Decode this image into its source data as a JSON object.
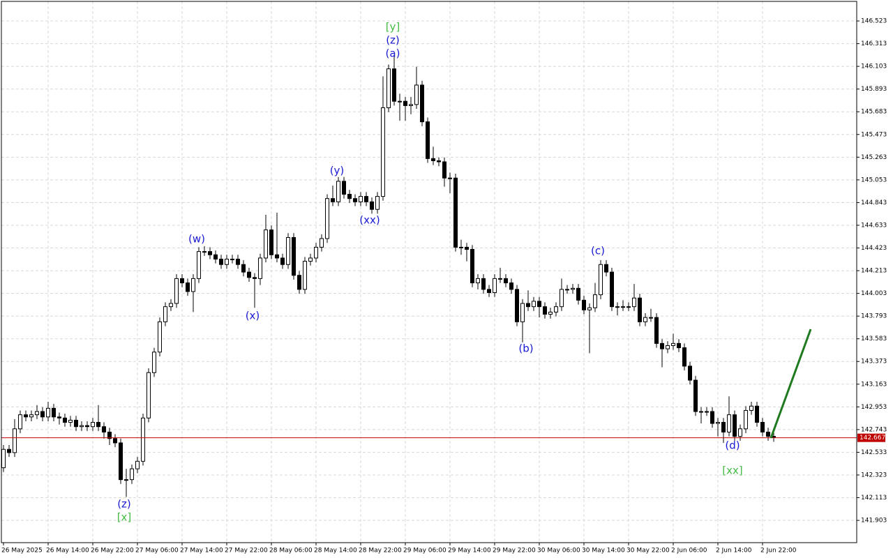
{
  "chart_data": {
    "type": "candlestick",
    "categories": [
      "26 May 2025",
      null,
      null,
      null,
      null,
      null,
      null,
      null,
      "26 May 14:00",
      null,
      null,
      null,
      null,
      null,
      null,
      null,
      "26 May 22:00",
      null,
      null,
      null,
      null,
      null,
      null,
      null,
      "27 May 06:00",
      null,
      null,
      null,
      null,
      null,
      null,
      null,
      "27 May 14:00",
      null,
      null,
      null,
      null,
      null,
      null,
      null,
      "27 May 22:00",
      null,
      null,
      null,
      null,
      null,
      null,
      null,
      "28 May 06:00",
      null,
      null,
      null,
      null,
      null,
      null,
      null,
      "28 May 14:00",
      null,
      null,
      null,
      null,
      null,
      null,
      null,
      "28 May 22:00",
      null,
      null,
      null,
      null,
      null,
      null,
      null,
      "29 May 06:00",
      null,
      null,
      null,
      null,
      null,
      null,
      null,
      "29 May 14:00",
      null,
      null,
      null,
      null,
      null,
      null,
      null,
      "29 May 22:00",
      null,
      null,
      null,
      null,
      null,
      null,
      null,
      "30 May 06:00",
      null,
      null,
      null,
      null,
      null,
      null,
      null,
      "30 May 14:00",
      null,
      null,
      null,
      null,
      null,
      null,
      null,
      "30 May 22:00",
      null,
      null,
      null,
      null,
      null,
      null,
      null,
      "2 Jun 06:00",
      null,
      null,
      null,
      null,
      null,
      null,
      null,
      "2 Jun 14:00",
      null,
      null,
      null,
      null,
      null,
      null,
      null,
      "2 Jun 22:00",
      null,
      null
    ],
    "open": [
      142.39,
      142.56,
      142.53,
      142.75,
      142.88,
      142.86,
      142.88,
      142.91,
      142.86,
      142.94,
      142.86,
      142.85,
      142.81,
      142.83,
      142.77,
      142.78,
      142.77,
      142.81,
      142.77,
      142.72,
      142.66,
      142.62,
      142.28,
      142.28,
      142.38,
      142.45,
      142.85,
      143.27,
      143.46,
      143.74,
      143.88,
      143.91,
      144.14,
      144.1,
      144.02,
      144.14,
      144.39,
      144.39,
      144.36,
      144.32,
      144.27,
      144.32,
      144.32,
      144.27,
      144.2,
      144.15,
      144.14,
      144.33,
      144.59,
      144.36,
      144.33,
      144.27,
      144.52,
      144.17,
      144.04,
      144.3,
      144.33,
      144.43,
      144.51,
      144.88,
      144.85,
      145.04,
      144.92,
      144.88,
      144.85,
      144.9,
      144.85,
      144.78,
      144.9,
      145.72,
      146.08,
      145.78,
      145.78,
      145.74,
      145.75,
      145.93,
      145.59,
      145.25,
      145.23,
      145.22,
      145.07,
      145.07,
      144.43,
      144.43,
      144.41,
      144.1,
      144.14,
      144.04,
      144.01,
      144.14,
      144.14,
      144.1,
      144.04,
      143.74,
      143.91,
      143.88,
      143.93,
      143.88,
      143.81,
      143.83,
      143.88,
      144.04,
      144.04,
      144.05,
      143.94,
      143.85,
      143.87,
      143.99,
      144.27,
      144.2,
      143.88,
      143.88,
      143.88,
      143.88,
      143.96,
      143.74,
      143.78,
      143.78,
      143.54,
      143.49,
      143.52,
      143.54,
      143.5,
      143.33,
      143.2,
      142.91,
      142.91,
      142.91,
      142.8,
      142.81,
      142.72,
      142.88,
      142.68,
      142.75,
      142.92,
      142.96,
      142.81,
      142.72,
      142.68
    ],
    "high": [
      142.6,
      142.6,
      142.84,
      142.92,
      142.92,
      142.92,
      142.97,
      142.95,
      143.0,
      142.98,
      142.9,
      142.89,
      142.87,
      142.87,
      142.82,
      142.82,
      142.85,
      142.97,
      142.81,
      142.76,
      142.7,
      142.66,
      142.38,
      142.42,
      142.49,
      142.89,
      143.31,
      143.5,
      143.78,
      143.92,
      143.95,
      144.18,
      144.18,
      144.14,
      144.18,
      144.43,
      144.44,
      144.43,
      144.4,
      144.36,
      144.36,
      144.36,
      144.36,
      144.31,
      144.24,
      144.19,
      144.37,
      144.73,
      144.63,
      144.75,
      144.37,
      144.56,
      144.56,
      144.21,
      144.34,
      144.37,
      144.47,
      144.55,
      144.92,
      145.0,
      145.08,
      145.08,
      144.96,
      144.92,
      144.94,
      144.94,
      144.89,
      144.94,
      146.01,
      146.12,
      146.2,
      145.85,
      145.82,
      145.82,
      146.1,
      145.97,
      145.63,
      145.36,
      145.26,
      145.26,
      145.12,
      145.11,
      144.5,
      144.47,
      144.45,
      144.18,
      144.18,
      144.08,
      144.18,
      144.24,
      144.18,
      144.14,
      144.08,
      143.95,
      144.03,
      143.97,
      143.97,
      143.92,
      143.87,
      143.92,
      144.14,
      144.08,
      144.09,
      144.09,
      143.98,
      143.91,
      144.1,
      144.31,
      144.31,
      144.24,
      143.92,
      143.94,
      143.92,
      144.09,
      144.0,
      143.82,
      143.86,
      143.82,
      143.58,
      143.56,
      143.63,
      143.58,
      143.54,
      143.37,
      143.24,
      142.95,
      142.95,
      142.95,
      142.85,
      142.85,
      143.05,
      142.92,
      142.79,
      142.96,
      143.0,
      143.0,
      142.85,
      142.76,
      142.72
    ],
    "low": [
      142.35,
      142.49,
      142.49,
      142.71,
      142.82,
      142.82,
      142.84,
      142.82,
      142.82,
      142.82,
      142.79,
      142.77,
      142.77,
      142.73,
      142.73,
      142.73,
      142.73,
      142.73,
      142.66,
      142.6,
      142.58,
      142.24,
      142.12,
      142.24,
      142.34,
      142.41,
      142.81,
      143.23,
      143.42,
      143.7,
      143.84,
      143.87,
      144.06,
      143.98,
      143.83,
      144.1,
      144.35,
      144.32,
      144.28,
      144.23,
      144.23,
      144.28,
      144.23,
      144.16,
      144.11,
      143.87,
      144.08,
      144.29,
      144.32,
      144.29,
      144.23,
      144.23,
      144.13,
      144.0,
      144.0,
      144.26,
      144.29,
      144.39,
      144.47,
      144.81,
      144.81,
      144.88,
      144.84,
      144.81,
      144.81,
      144.81,
      144.74,
      144.74,
      144.86,
      145.68,
      145.74,
      145.6,
      145.6,
      145.66,
      145.71,
      145.55,
      145.21,
      145.19,
      145.18,
      144.99,
      144.93,
      144.39,
      144.36,
      144.3,
      144.06,
      144.04,
      144.0,
      143.97,
      143.97,
      144.1,
      144.06,
      144.0,
      143.7,
      143.55,
      143.84,
      143.84,
      143.78,
      143.77,
      143.77,
      143.79,
      143.84,
      144.0,
      144.0,
      143.9,
      143.81,
      143.45,
      143.83,
      143.95,
      144.16,
      143.84,
      143.8,
      143.84,
      143.84,
      143.84,
      143.7,
      143.7,
      143.74,
      143.5,
      143.32,
      143.45,
      143.48,
      143.46,
      143.29,
      143.16,
      142.87,
      142.8,
      142.87,
      142.76,
      142.68,
      142.62,
      142.68,
      142.64,
      142.64,
      142.71,
      142.88,
      142.77,
      142.68,
      142.64,
      142.63
    ],
    "close": [
      142.56,
      142.53,
      142.75,
      142.88,
      142.86,
      142.88,
      142.91,
      142.86,
      142.94,
      142.86,
      142.85,
      142.81,
      142.83,
      142.77,
      142.78,
      142.77,
      142.81,
      142.77,
      142.72,
      142.66,
      142.62,
      142.28,
      142.28,
      142.38,
      142.45,
      142.85,
      143.27,
      143.46,
      143.74,
      143.88,
      143.91,
      144.14,
      144.1,
      144.02,
      144.14,
      144.39,
      144.39,
      144.36,
      144.32,
      144.27,
      144.32,
      144.32,
      144.27,
      144.2,
      144.15,
      144.14,
      144.33,
      144.59,
      144.36,
      144.33,
      144.27,
      144.52,
      144.17,
      144.04,
      144.3,
      144.33,
      144.43,
      144.51,
      144.88,
      144.85,
      145.04,
      144.92,
      144.88,
      144.85,
      144.9,
      144.85,
      144.78,
      144.9,
      145.72,
      146.08,
      145.78,
      145.78,
      145.74,
      145.75,
      145.93,
      145.59,
      145.25,
      145.23,
      145.22,
      145.07,
      145.07,
      144.43,
      144.43,
      144.41,
      144.1,
      144.14,
      144.04,
      144.01,
      144.14,
      144.14,
      144.1,
      144.04,
      143.74,
      143.91,
      143.88,
      143.93,
      143.88,
      143.81,
      143.83,
      143.88,
      144.04,
      144.04,
      144.05,
      143.94,
      143.85,
      143.87,
      143.99,
      144.27,
      144.2,
      143.88,
      143.88,
      143.88,
      143.88,
      143.96,
      143.74,
      143.78,
      143.78,
      143.54,
      143.49,
      143.52,
      143.54,
      143.5,
      143.33,
      143.2,
      142.91,
      142.91,
      142.91,
      142.8,
      142.81,
      142.72,
      142.88,
      142.68,
      142.75,
      142.92,
      142.96,
      142.81,
      142.72,
      142.68,
      142.67
    ],
    "up_color": "#ffffff",
    "down_color": "#000000",
    "wick_color": "#000000",
    "ylim": [
      141.697,
      146.704
    ],
    "yticks": [
      146.523,
      146.313,
      146.103,
      145.893,
      145.683,
      145.473,
      145.263,
      145.053,
      144.843,
      144.633,
      144.423,
      144.213,
      144.003,
      143.793,
      143.583,
      143.373,
      143.163,
      142.953,
      142.743,
      142.533,
      142.323,
      142.113,
      141.903
    ],
    "grid": true,
    "current_price": 142.667,
    "current_price_color": "#c00000",
    "annotations": [
      {
        "text": "[y]",
        "color": "#44bb44"
      },
      {
        "text": "(z)",
        "color": "#1a1ad6"
      },
      {
        "text": "(a)",
        "color": "#1a1ad6"
      },
      {
        "text": "(w)",
        "color": "#1a1ad6"
      },
      {
        "text": "(x)",
        "color": "#1a1ad6"
      },
      {
        "text": "(y)",
        "color": "#1a1ad6"
      },
      {
        "text": "(xx)",
        "color": "#1a1ad6"
      },
      {
        "text": "(b)",
        "color": "#1a1ad6"
      },
      {
        "text": "(c)",
        "color": "#1a1ad6"
      },
      {
        "text": "(d)",
        "color": "#1a1ad6"
      },
      {
        "text": "[xx]",
        "color": "#44bb44"
      },
      {
        "text": "(z)",
        "color": "#1a1ad6"
      },
      {
        "text": "[x]",
        "color": "#44bb44"
      }
    ]
  }
}
